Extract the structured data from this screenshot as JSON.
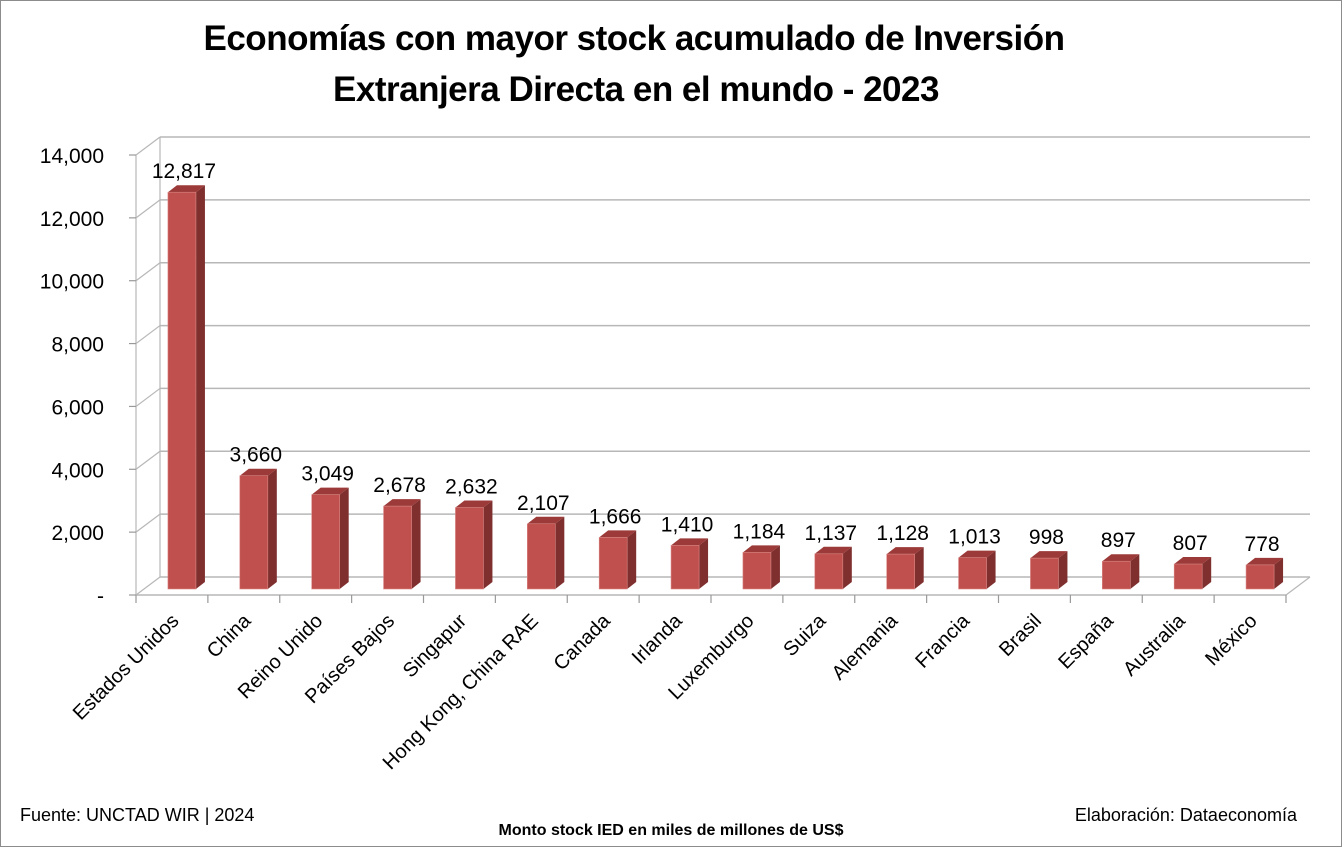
{
  "chart_data": {
    "type": "bar",
    "style": "3d-column",
    "title_lines": [
      "Economías con mayor stock acumulado de Inversión",
      "Extranjera Directa en el mundo - 2023"
    ],
    "categories": [
      "Estados Unidos",
      "China",
      "Reino Unido",
      "Países Bajos",
      "Singapur",
      "Hong Kong, China RAE",
      "Canada",
      "Irlanda",
      "Luxemburgo",
      "Suiza",
      "Alemania",
      "Francia",
      "Brasil",
      "España",
      "Australia",
      "México"
    ],
    "values": [
      12817,
      3660,
      3049,
      2678,
      2632,
      2107,
      1666,
      1410,
      1184,
      1137,
      1128,
      1013,
      998,
      897,
      807,
      778
    ],
    "data_labels": [
      "12,817",
      "3,660",
      "3,049",
      "2,678",
      "2,632",
      "2,107",
      "1,666",
      "1,410",
      "1,184",
      "1,137",
      "1,128",
      "1,013",
      "998",
      "897",
      "807",
      "778"
    ],
    "ylim": [
      0,
      14000
    ],
    "yticks": [
      0,
      2000,
      4000,
      6000,
      8000,
      10000,
      12000,
      14000
    ],
    "ytick_labels": [
      "-",
      "2,000",
      "4,000",
      "6,000",
      "8,000",
      "10,000",
      "12,000",
      "14,000"
    ],
    "xlabel": "Monto stock IED en miles de millones de US$",
    "ylabel": "",
    "grid": true,
    "legend": "none",
    "colors": {
      "bar_front": "#c0504d",
      "bar_side": "#7f2f2e",
      "bar_top": "#9b3a38",
      "grid": "#b7b7b7"
    }
  },
  "footer": {
    "source": "Fuente: UNCTAD WIR | 2024",
    "credit": "Elaboración: Dataeconomía"
  }
}
